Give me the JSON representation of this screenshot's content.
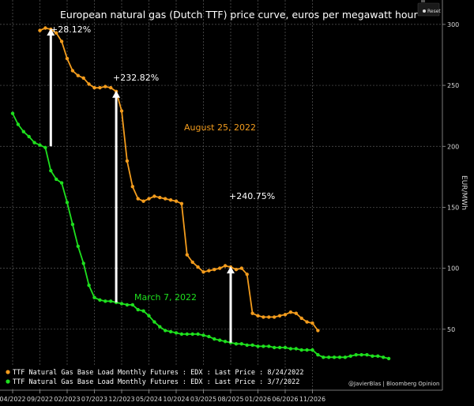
{
  "chart_data": {
    "type": "line",
    "title": "European natural gas (Dutch TTF) price curve, euros per megawatt hour",
    "ylabel": "EUR/MWh",
    "ylim": [
      0,
      320
    ],
    "yticks": [
      50,
      100,
      150,
      200,
      250,
      300
    ],
    "x_tick_labels": [
      "04/2022",
      "09/2022",
      "02/2023",
      "07/2023",
      "12/2023",
      "05/2024",
      "10/2024",
      "03/2025",
      "08/2025",
      "01/2026",
      "06/2026",
      "11/2026"
    ],
    "series": [
      {
        "name": "TTF Natural Gas Base Load Monthly Futures : EDX : Last Price : 8/24/2022",
        "color": "#f39c1d",
        "start_month": "09/2022",
        "values": [
          295,
          297,
          296,
          293,
          286,
          272,
          262,
          258,
          256,
          251,
          248,
          248,
          249,
          248,
          245,
          229,
          188,
          167,
          157,
          155,
          157,
          159,
          158,
          157,
          156,
          155,
          153,
          111,
          105,
          101,
          97,
          98,
          99,
          100,
          102,
          101,
          99,
          100,
          95,
          63,
          61,
          60,
          60,
          60,
          61,
          62,
          64,
          63,
          59,
          56,
          55,
          49
        ]
      },
      {
        "name": "TTF Natural Gas Base Load Monthly Futures : EDX : Last Price : 3/7/2022",
        "color": "#1ee01e",
        "start_month": "04/2022",
        "values": [
          227,
          218,
          212,
          208,
          203,
          201,
          199,
          180,
          173,
          170,
          154,
          136,
          118,
          104,
          86,
          76,
          74,
          73,
          73,
          72,
          71,
          70,
          70,
          66,
          65,
          61,
          56,
          52,
          49,
          48,
          47,
          46,
          46,
          46,
          46,
          45,
          44,
          42,
          41,
          40,
          39,
          38,
          38,
          37,
          37,
          36,
          36,
          36,
          35,
          35,
          35,
          34,
          34,
          33,
          33,
          33,
          29,
          27,
          27,
          27,
          27,
          27,
          28,
          29,
          29,
          29,
          28,
          28,
          27,
          26
        ]
      }
    ],
    "annotations": {
      "orange_label": "August 25, 2022",
      "green_label": "March 7, 2022",
      "pct_1": "+28.12%",
      "pct_2": "+232.82%",
      "pct_3": "+240.75%"
    }
  },
  "legend": {
    "item_1": "TTF Natural Gas Base Load Monthly Futures : EDX : Last Price : 8/24/2022",
    "item_2": "TTF Natural Gas Base Load Monthly Futures : EDX : Last Price : 3/7/2022"
  },
  "credit": "@JavierBlas | Bloomberg Opinion",
  "toolbar": {
    "reset_label": "Reset"
  }
}
